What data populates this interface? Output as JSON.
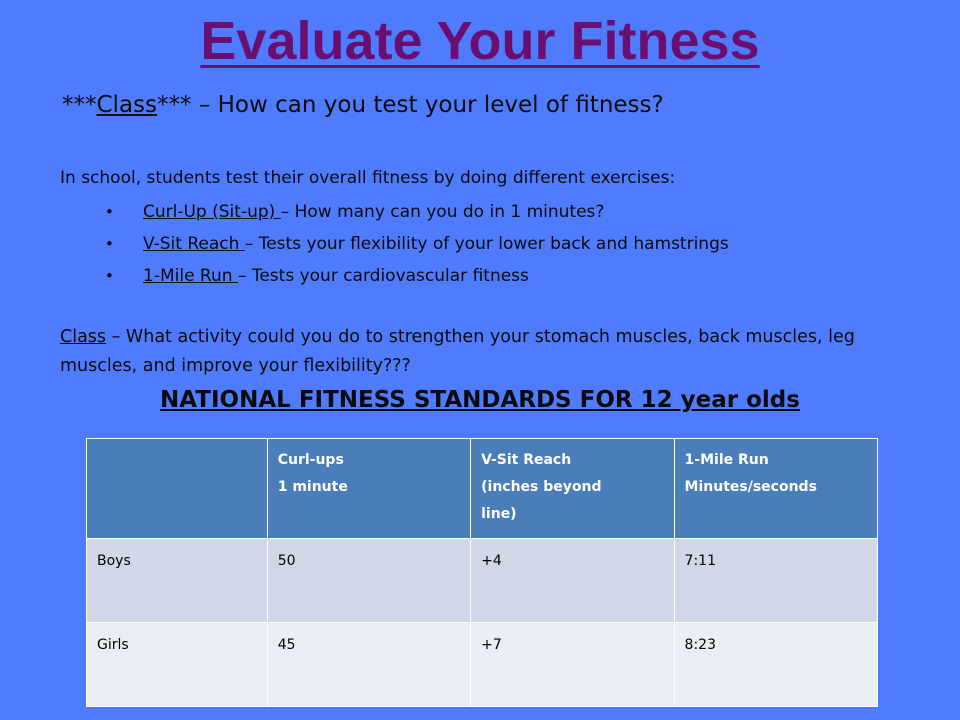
{
  "title": "Evaluate Your Fitness",
  "question": {
    "prefix": "***",
    "label": "Class",
    "suffix": "***",
    "text": " – How can you test your level of fitness?"
  },
  "intro": "In school, students test their overall fitness by doing different exercises:",
  "bullets": [
    {
      "term": "Curl-Up (Sit-up) ",
      "desc": "– How many can you do in 1 minutes?"
    },
    {
      "term": "V-Sit Reach ",
      "desc": "– Tests your flexibility of your lower back and hamstrings"
    },
    {
      "term": "1-Mile Run ",
      "desc": "– Tests your cardiovascular fitness"
    }
  ],
  "class_question": {
    "label": "Class",
    "text": " – What activity could you do to strengthen your stomach muscles, back muscles, leg muscles, and improve your flexibility???"
  },
  "table_heading": "NATIONAL FITNESS STANDARDS FOR 12 year olds",
  "table": {
    "headers": [
      [
        ""
      ],
      [
        "Curl-ups",
        "1 minute"
      ],
      [
        "V-Sit Reach",
        "(inches beyond",
        "line)"
      ],
      [
        "1-Mile Run",
        "Minutes/seconds"
      ]
    ],
    "rows": [
      [
        "Boys",
        "50",
        "+4",
        "7:11"
      ],
      [
        "Girls",
        "45",
        "+7",
        "8:23"
      ]
    ]
  }
}
